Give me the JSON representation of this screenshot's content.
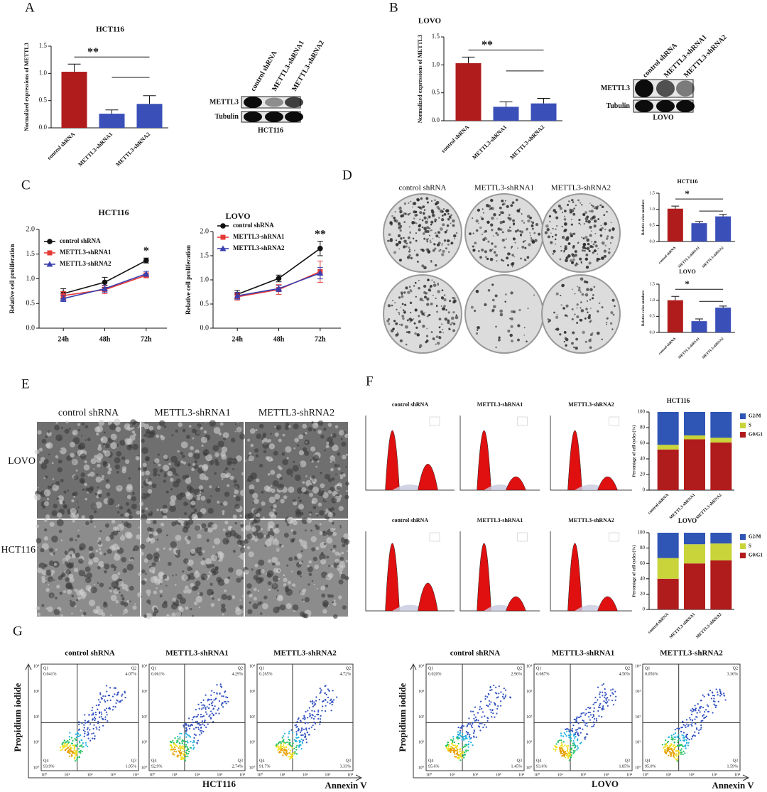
{
  "panel_labels": [
    "A",
    "B",
    "C",
    "D",
    "E",
    "F",
    "G"
  ],
  "chart_data": [
    {
      "type": "bar",
      "title": "HCT116",
      "ylabel": "Normalized expressions of METTL3",
      "categories": [
        "control shRNA",
        "METTL3-shRNA1",
        "METTL3-shRNA2"
      ],
      "values": [
        1.03,
        0.26,
        0.44
      ],
      "errors": [
        0.14,
        0.07,
        0.15
      ],
      "colors": [
        "#b01c1c",
        "#3a4fb8",
        "#3a4fb8"
      ],
      "ylim": [
        0,
        1.5
      ],
      "yticks": [
        {
          "value": 0,
          "label": "0.0"
        },
        0.5,
        {
          "value": 1,
          "label": "1.0"
        },
        1.5
      ],
      "significance": "**"
    },
    {
      "type": "bar",
      "title": "LOVO",
      "ylabel": "Normalized expressions of METTL3",
      "categories": [
        "control shRNA",
        "METTL3-shRNA1",
        "METTL3-shRNA2"
      ],
      "values": [
        1.03,
        0.25,
        0.31
      ],
      "errors": [
        0.11,
        0.09,
        0.09
      ],
      "colors": [
        "#b01c1c",
        "#3a4fb8",
        "#3a4fb8"
      ],
      "ylim": [
        0,
        1.5
      ],
      "yticks": [
        {
          "value": 0,
          "label": "0.0"
        },
        0.5,
        {
          "value": 1,
          "label": "1.0"
        },
        1.5
      ],
      "significance": "**"
    },
    {
      "type": "line",
      "title": "HCT116",
      "ylabel": "Relative cell proliferation",
      "categories": [
        "24h",
        "48h",
        "72h"
      ],
      "ylim": [
        0,
        2
      ],
      "yticks": [
        {
          "value": 0,
          "label": "0.0"
        },
        0.5,
        {
          "value": 1,
          "label": "1.0"
        },
        1.5,
        {
          "value": 2,
          "label": "2.0"
        }
      ],
      "legend": "upper left",
      "annotation": "*",
      "series": [
        {
          "name": "control shRNA",
          "color": "#111111",
          "marker": "circle",
          "values": [
            0.7,
            0.93,
            1.37
          ],
          "errors": [
            0.1,
            0.1,
            0.05
          ]
        },
        {
          "name": "METTL3-shRNA1",
          "color": "#e53935",
          "marker": "square",
          "values": [
            0.66,
            0.78,
            1.07
          ],
          "errors": [
            0.08,
            0.08,
            0.05
          ]
        },
        {
          "name": "METTL3-shRNA2",
          "color": "#3a3fb0",
          "marker": "triangle",
          "values": [
            0.6,
            0.8,
            1.1
          ],
          "errors": [
            0.06,
            0.07,
            0.05
          ]
        }
      ]
    },
    {
      "type": "line",
      "title": "LOVO",
      "ylabel": "Relative cell proliferation",
      "categories": [
        "24h",
        "48h",
        "72h"
      ],
      "ylim": [
        0,
        2
      ],
      "yticks": [
        {
          "value": 0,
          "label": "0.0"
        },
        0.5,
        {
          "value": 1,
          "label": "1.0"
        },
        1.5,
        {
          "value": 2,
          "label": "2.0"
        }
      ],
      "legend": "upper left",
      "annotation": "**",
      "series": [
        {
          "name": "control shRNA",
          "color": "#111111",
          "marker": "circle",
          "values": [
            0.7,
            1.03,
            1.65
          ],
          "errors": [
            0.08,
            0.07,
            0.15
          ]
        },
        {
          "name": "METTL3-shRNA1",
          "color": "#e53935",
          "marker": "square",
          "values": [
            0.65,
            0.8,
            1.17
          ],
          "errors": [
            0.07,
            0.1,
            0.22
          ]
        },
        {
          "name": "METTL3-shRNA2",
          "color": "#3a3fb0",
          "marker": "triangle",
          "values": [
            0.67,
            0.82,
            1.14
          ],
          "errors": [
            0.07,
            0.06,
            0.12
          ]
        }
      ]
    },
    {
      "type": "bar",
      "title": "HCT116",
      "ylabel": "Relative colon numbers",
      "categories": [
        "control shRNA",
        "METTL3-shRNA1",
        "METTL3-shRNA2"
      ],
      "values": [
        1.02,
        0.57,
        0.78
      ],
      "errors": [
        0.08,
        0.05,
        0.06
      ],
      "colors": [
        "#b01c1c",
        "#3a4fb8",
        "#3a4fb8"
      ],
      "ylim": [
        0,
        1.5
      ],
      "yticks": [
        {
          "value": 0,
          "label": "0.0"
        },
        0.5,
        {
          "value": 1,
          "label": "1.0"
        },
        1.5
      ],
      "significance": "*"
    },
    {
      "type": "bar",
      "title": "LOVO",
      "ylabel": "Relative colon numbers",
      "categories": [
        "control shRNA",
        "METTL3-shRNA1",
        "METTL3-shRNA2"
      ],
      "values": [
        1.0,
        0.35,
        0.77
      ],
      "errors": [
        0.12,
        0.07,
        0.05
      ],
      "colors": [
        "#b01c1c",
        "#3a4fb8",
        "#3a4fb8"
      ],
      "ylim": [
        0,
        1.5
      ],
      "yticks": [
        {
          "value": 0,
          "label": "0.0"
        },
        0.5,
        {
          "value": 1,
          "label": "1.0"
        },
        1.5
      ],
      "significance": "*"
    },
    {
      "type": "stacked_bar",
      "title": "HCT116",
      "ylabel": "Percentage of cell cycles (%)",
      "categories": [
        "control shRNA",
        "METTL3-shRNA1",
        "METTL3-shRNA2"
      ],
      "ylim": [
        0,
        100
      ],
      "yticks": [
        0,
        20,
        40,
        60,
        80,
        100
      ],
      "legend": "right",
      "series": [
        {
          "name": "G0/G1",
          "color": "#b01c1c",
          "values": [
            52,
            65,
            61
          ]
        },
        {
          "name": "S",
          "color": "#c8d43a",
          "values": [
            6,
            5,
            6
          ]
        },
        {
          "name": "G2/M",
          "color": "#2f55b5",
          "values": [
            42,
            30,
            33
          ]
        }
      ]
    },
    {
      "type": "stacked_bar",
      "title": "LOVO",
      "ylabel": "Percentage of cell cycles (%)",
      "categories": [
        "control shRNA",
        "METTL3-shRNA1",
        "METTL3-shRNA2"
      ],
      "ylim": [
        0,
        100
      ],
      "yticks": [
        0,
        20,
        40,
        60,
        80,
        100
      ],
      "legend": "right",
      "series": [
        {
          "name": "G0/G1",
          "color": "#b01c1c",
          "values": [
            40,
            60,
            64
          ]
        },
        {
          "name": "S",
          "color": "#c8d43a",
          "values": [
            27,
            25,
            22
          ]
        },
        {
          "name": "G2/M",
          "color": "#2f55b5",
          "values": [
            33,
            15,
            14
          ]
        }
      ]
    }
  ],
  "western_blots": [
    {
      "columns": [
        "control shRNA",
        "METTL3-shRNA1",
        "METTL3-shRNA2"
      ],
      "rows": [
        "METTL3",
        "Tubulin"
      ],
      "cell_line": "HCT116"
    },
    {
      "columns": [
        "control shRNA",
        "METTL3-shRNA1",
        "METTL3-shRNA2"
      ],
      "rows": [
        "METTL3",
        "Tubulin"
      ],
      "cell_line": "LOVO"
    }
  ],
  "colony_assay": {
    "columns": [
      "control shRNA",
      "METTL3-shRNA1",
      "METTL3-shRNA2"
    ]
  },
  "migration_assay": {
    "columns": [
      "control shRNA",
      "METTL3-shRNA1",
      "METTL3-shRNA2"
    ],
    "rows": [
      "LOVO",
      "HCT116"
    ]
  },
  "cell_cycle_histograms": [
    {
      "columns": [
        "control shRNA",
        "METTL3-shRNA1",
        "METTL3-shRNA2"
      ]
    },
    {
      "columns": [
        "control shRNA",
        "METTL3-shRNA1",
        "METTL3-shRNA2"
      ]
    }
  ],
  "flow_cytometry": {
    "y_label": "Propidium iodide",
    "x_label": "Annexin V",
    "tick_labels": [
      "10⁰",
      "10¹",
      "10²",
      "10³",
      "10⁴"
    ],
    "quadrant_names": [
      "Q1",
      "Q2",
      "Q3",
      "Q4"
    ],
    "groups": [
      {
        "cell_line": "HCT116",
        "plots": [
          {
            "name": "control shRNA",
            "Q1": "0.041%",
            "Q2": "4.07%",
            "Q3": "1.95%",
            "Q4": "93.9%"
          },
          {
            "name": "METTL3-shRNA1",
            "Q1": "0.061%",
            "Q2": "4.29%",
            "Q3": "2.74%",
            "Q4": "92.9%"
          },
          {
            "name": "METTL3-shRNA2",
            "Q1": "0.265%",
            "Q2": "4.72%",
            "Q3": "3.33%",
            "Q4": "91.7%"
          }
        ]
      },
      {
        "cell_line": "LOVO",
        "plots": [
          {
            "name": "control shRNA",
            "Q1": "0.020%",
            "Q2": "2.96%",
            "Q3": "1.45%",
            "Q4": "95.6%"
          },
          {
            "name": "METTL3-shRNA1",
            "Q1": "0.087%",
            "Q2": "4.50%",
            "Q3": "1.85%",
            "Q4": "93.6%"
          },
          {
            "name": "METTL3-shRNA2",
            "Q1": "0.056%",
            "Q2": "3.36%",
            "Q3": "1.59%",
            "Q4": "95.0%"
          }
        ]
      }
    ]
  }
}
